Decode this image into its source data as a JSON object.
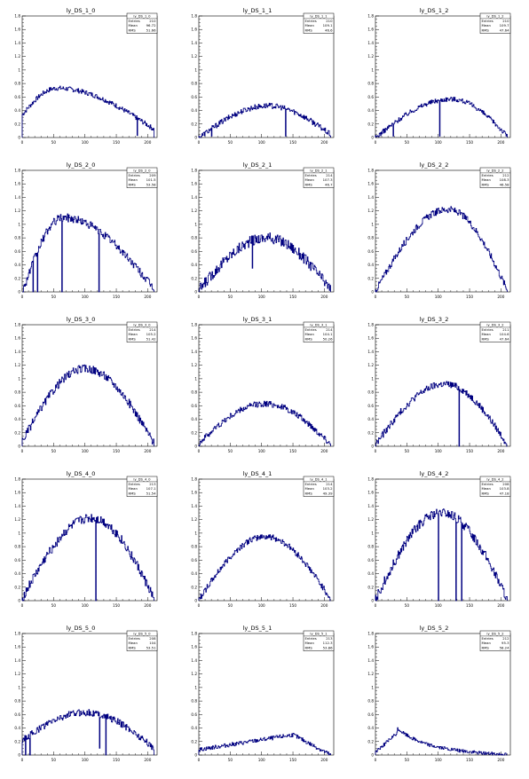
{
  "chart_data": [
    {
      "type": "histogram",
      "title": "ly_DS_1_0",
      "stats": {
        "name": "ly_DS_1_0",
        "entries": "210",
        "mean": "96.72",
        "rms": "51.66"
      },
      "shape": {
        "peak": 0.73,
        "peakAt": 55,
        "start": 0.34,
        "end": 0.12,
        "drops": [
          [
            183,
            0.03
          ]
        ],
        "noise": 0.035
      },
      "xlim": [
        0,
        215
      ],
      "ylim": [
        0,
        1.8
      ]
    },
    {
      "type": "histogram",
      "title": "ly_DS_1_1",
      "stats": {
        "name": "ly_DS_1_1",
        "entries": "210",
        "mean": "109.1",
        "rms": "46.6"
      },
      "shape": {
        "peak": 0.47,
        "peakAt": 110,
        "start": 0.0,
        "end": 0.04,
        "drops": [
          [
            20,
            0.02
          ],
          [
            138,
            0.02
          ]
        ],
        "noise": 0.04
      },
      "xlim": [
        0,
        215
      ],
      "ylim": [
        0,
        1.8
      ]
    },
    {
      "type": "histogram",
      "title": "ly_DS_1_2",
      "stats": {
        "name": "ly_DS_1_2",
        "entries": "210",
        "mean": "109.7",
        "rms": "47.64"
      },
      "shape": {
        "peak": 0.57,
        "peakAt": 120,
        "start": 0.0,
        "end": 0.02,
        "drops": [
          [
            28,
            0.02
          ],
          [
            102,
            0.02
          ]
        ],
        "noise": 0.035
      },
      "xlim": [
        0,
        215
      ],
      "ylim": [
        0,
        1.8
      ]
    },
    {
      "type": "histogram",
      "title": "ly_DS_2_0",
      "stats": {
        "name": "ly_DS_2_0",
        "entries": "209",
        "mean": "101.5",
        "rms": "53.58"
      },
      "shape": {
        "peak": 1.1,
        "peakAt": 65,
        "start": 0.0,
        "end": 0.04,
        "drops": [
          [
            17,
            0.0
          ],
          [
            24,
            0.0
          ],
          [
            63,
            0.0
          ],
          [
            122,
            0.0
          ]
        ],
        "noise": 0.06
      },
      "xlim": [
        0,
        215
      ],
      "ylim": [
        0,
        1.8
      ]
    },
    {
      "type": "histogram",
      "title": "ly_DS_2_1",
      "stats": {
        "name": "ly_DS_2_1",
        "entries": "214",
        "mean": "107.3",
        "rms": "46.7"
      },
      "shape": {
        "peak": 0.8,
        "peakAt": 108,
        "start": 0.03,
        "end": 0.03,
        "drops": [
          [
            85,
            0.35
          ]
        ],
        "noise": 0.08
      },
      "xlim": [
        0,
        215
      ],
      "ylim": [
        0,
        1.8
      ]
    },
    {
      "type": "histogram",
      "title": "ly_DS_2_2",
      "stats": {
        "name": "ly_DS_2_2",
        "entries": "212",
        "mean": "108.3",
        "rms": "46.58"
      },
      "shape": {
        "peak": 1.22,
        "peakAt": 115,
        "start": 0.02,
        "end": 0.02,
        "drops": [],
        "noise": 0.05
      },
      "xlim": [
        0,
        215
      ],
      "ylim": [
        0,
        1.8
      ]
    },
    {
      "type": "histogram",
      "title": "ly_DS_3_0",
      "stats": {
        "name": "ly_DS_3_0",
        "entries": "214",
        "mean": "105.2",
        "rms": "51.42"
      },
      "shape": {
        "peak": 1.15,
        "peakAt": 100,
        "start": 0.08,
        "end": 0.04,
        "drops": [],
        "noise": 0.06
      },
      "xlim": [
        0,
        215
      ],
      "ylim": [
        0,
        1.8
      ]
    },
    {
      "type": "histogram",
      "title": "ly_DS_3_1",
      "stats": {
        "name": "ly_DS_3_1",
        "entries": "214",
        "mean": "104.1",
        "rms": "50.26"
      },
      "shape": {
        "peak": 0.63,
        "peakAt": 105,
        "start": 0.05,
        "end": 0.03,
        "drops": [],
        "noise": 0.045
      },
      "xlim": [
        0,
        215
      ],
      "ylim": [
        0,
        1.8
      ]
    },
    {
      "type": "histogram",
      "title": "ly_DS_3_2",
      "stats": {
        "name": "ly_DS_3_2",
        "entries": "211",
        "mean": "104.6",
        "rms": "47.64"
      },
      "shape": {
        "peak": 0.92,
        "peakAt": 110,
        "start": 0.03,
        "end": 0.02,
        "drops": [
          [
            133,
            0.0
          ]
        ],
        "noise": 0.05
      },
      "xlim": [
        0,
        215
      ],
      "ylim": [
        0,
        1.8
      ]
    },
    {
      "type": "histogram",
      "title": "ly_DS_4_0",
      "stats": {
        "name": "ly_DS_4_0",
        "entries": "213",
        "mean": "107.1",
        "rms": "51.54"
      },
      "shape": {
        "peak": 1.22,
        "peakAt": 110,
        "start": 0.04,
        "end": 0.02,
        "drops": [
          [
            117,
            0.0
          ]
        ],
        "noise": 0.07
      },
      "xlim": [
        0,
        215
      ],
      "ylim": [
        0,
        1.8
      ]
    },
    {
      "type": "histogram",
      "title": "ly_DS_4_1",
      "stats": {
        "name": "ly_DS_4_1",
        "entries": "214",
        "mean": "103.2",
        "rms": "49.39"
      },
      "shape": {
        "peak": 0.95,
        "peakAt": 105,
        "start": 0.02,
        "end": 0.02,
        "drops": [],
        "noise": 0.045
      },
      "xlim": [
        0,
        215
      ],
      "ylim": [
        0,
        1.8
      ]
    },
    {
      "type": "histogram",
      "title": "ly_DS_4_2",
      "stats": {
        "name": "ly_DS_4_2",
        "entries": "208",
        "mean": "103.8",
        "rms": "47.18"
      },
      "shape": {
        "peak": 1.3,
        "peakAt": 105,
        "start": 0.02,
        "end": 0.02,
        "drops": [
          [
            100,
            0.0
          ],
          [
            128,
            0.0
          ],
          [
            137,
            0.0
          ]
        ],
        "noise": 0.07
      },
      "xlim": [
        0,
        215
      ],
      "ylim": [
        0,
        1.8
      ]
    },
    {
      "type": "histogram",
      "title": "ly_DS_5_0",
      "stats": {
        "name": "ly_DS_5_0",
        "entries": "208",
        "mean": "104",
        "rms": "53.51"
      },
      "shape": {
        "peak": 0.63,
        "peakAt": 100,
        "start": 0.22,
        "end": 0.1,
        "drops": [
          [
            5,
            0.0
          ],
          [
            12,
            0.0
          ],
          [
            133,
            0.0
          ],
          [
            123,
            0.1
          ]
        ],
        "noise": 0.05
      },
      "xlim": [
        0,
        215
      ],
      "ylim": [
        0,
        1.8
      ]
    },
    {
      "type": "histogram",
      "title": "ly_DS_5_1",
      "stats": {
        "name": "ly_DS_5_1",
        "entries": "213",
        "mean": "112.3",
        "rms": "53.86"
      },
      "shape": {
        "peak": 0.3,
        "peakAt": 150,
        "start": 0.08,
        "end": 0.02,
        "drops": [],
        "noise": 0.03,
        "ramp": true
      },
      "xlim": [
        0,
        215
      ],
      "ylim": [
        0,
        1.8
      ]
    },
    {
      "type": "histogram",
      "title": "ly_DS_5_2",
      "stats": {
        "name": "ly_DS_5_2",
        "entries": "212",
        "mean": "95.3",
        "rms": "58.24"
      },
      "shape": {
        "peak": 0.33,
        "peakAt": 35,
        "start": 0.05,
        "end": 0.0,
        "drops": [],
        "noise": 0.025,
        "decay": true
      },
      "xlim": [
        0,
        215
      ],
      "ylim": [
        0,
        1.8
      ]
    }
  ],
  "axis": {
    "yticks": [
      "0",
      "0.2",
      "0.4",
      "0.6",
      "0.8",
      "1",
      "1.2",
      "1.4",
      "1.6",
      "1.8"
    ],
    "xticks": [
      "0",
      "50",
      "100",
      "150",
      "200"
    ]
  },
  "stat_labels": {
    "entries": "Entries",
    "mean": "Mean",
    "rms": "RMS"
  },
  "colors": {
    "line": "#000080",
    "axis": "#000000",
    "frame": "#000000"
  }
}
